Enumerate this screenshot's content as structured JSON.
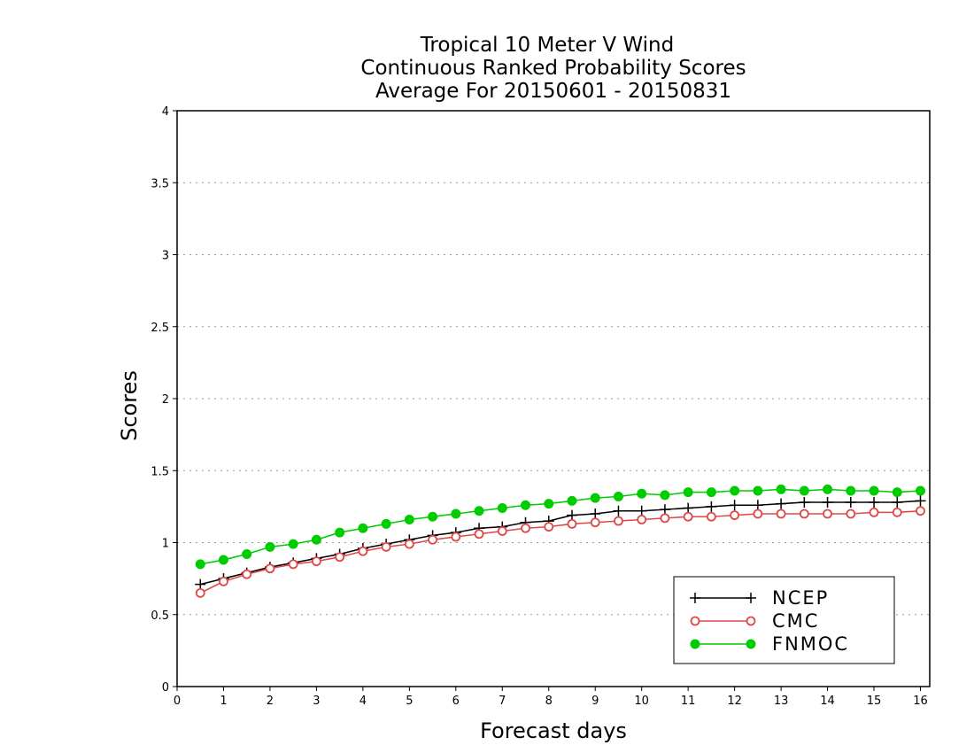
{
  "chart_data": {
    "type": "line",
    "title": [
      "Tropical 10 Meter V Wind",
      "Continuous Ranked Probability Scores",
      "Average For 20150601 - 20150831"
    ],
    "xlabel": "Forecast days",
    "ylabel": "Scores",
    "xlim": [
      0,
      16.2
    ],
    "ylim": [
      0,
      4
    ],
    "xticks": [
      0,
      1,
      2,
      3,
      4,
      5,
      6,
      7,
      8,
      9,
      10,
      11,
      12,
      13,
      14,
      15,
      16
    ],
    "yticks": [
      0,
      0.5,
      1,
      1.5,
      2,
      2.5,
      3,
      3.5,
      4
    ],
    "ytick_labels": [
      "0",
      "0.5",
      "1",
      "1.5",
      "2",
      "2.5",
      "3",
      "3.5",
      "4"
    ],
    "grid": "horizontal dotted",
    "legend": "bottom-right",
    "x": [
      0.5,
      1,
      1.5,
      2,
      2.5,
      3,
      3.5,
      4,
      4.5,
      5,
      5.5,
      6,
      6.5,
      7,
      7.5,
      8,
      8.5,
      9,
      9.5,
      10,
      10.5,
      11,
      11.5,
      12,
      12.5,
      13,
      13.5,
      14,
      14.5,
      15,
      15.5,
      16
    ],
    "series": [
      {
        "name": "NCEP",
        "color": "#000000",
        "marker": "plus",
        "values": [
          0.71,
          0.75,
          0.79,
          0.83,
          0.86,
          0.89,
          0.92,
          0.96,
          0.99,
          1.02,
          1.05,
          1.07,
          1.1,
          1.11,
          1.14,
          1.15,
          1.19,
          1.2,
          1.22,
          1.22,
          1.23,
          1.24,
          1.25,
          1.26,
          1.26,
          1.27,
          1.28,
          1.28,
          1.28,
          1.28,
          1.28,
          1.29
        ]
      },
      {
        "name": "CMC",
        "color": "#e04848",
        "marker": "open-circle",
        "values": [
          0.65,
          0.73,
          0.78,
          0.82,
          0.85,
          0.87,
          0.9,
          0.94,
          0.97,
          0.99,
          1.02,
          1.04,
          1.06,
          1.08,
          1.1,
          1.11,
          1.13,
          1.14,
          1.15,
          1.16,
          1.17,
          1.18,
          1.18,
          1.19,
          1.2,
          1.2,
          1.2,
          1.2,
          1.2,
          1.21,
          1.21,
          1.22
        ]
      },
      {
        "name": "FNMOC",
        "color": "#00cc00",
        "marker": "filled-circle",
        "values": [
          0.85,
          0.88,
          0.92,
          0.97,
          0.99,
          1.02,
          1.07,
          1.1,
          1.13,
          1.16,
          1.18,
          1.2,
          1.22,
          1.24,
          1.26,
          1.27,
          1.29,
          1.31,
          1.32,
          1.34,
          1.33,
          1.35,
          1.35,
          1.36,
          1.36,
          1.37,
          1.36,
          1.37,
          1.36,
          1.36,
          1.35,
          1.36
        ]
      }
    ]
  }
}
